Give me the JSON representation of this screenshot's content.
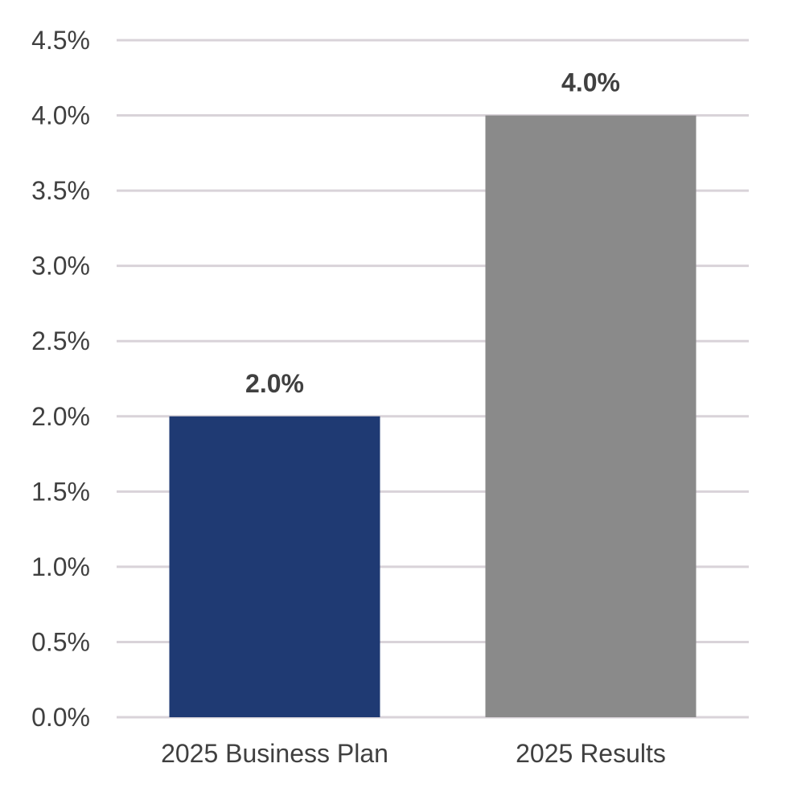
{
  "chart_data": {
    "type": "bar",
    "title": "",
    "xlabel": "",
    "ylabel": "",
    "categories": [
      "2025 Business Plan",
      "2025 Results"
    ],
    "values": [
      2.0,
      4.0
    ],
    "value_labels": [
      "2.0%",
      "4.0%"
    ],
    "colors": [
      "#1f3a73",
      "#8a8a8a"
    ],
    "ylim": [
      0,
      4.5
    ],
    "yticks": [
      0,
      0.5,
      1.0,
      1.5,
      2.0,
      2.5,
      3.0,
      3.5,
      4.0,
      4.5
    ],
    "ytick_labels": [
      "0.0%",
      "0.5%",
      "1.0%",
      "1.5%",
      "2.0%",
      "2.5%",
      "3.0%",
      "3.5%",
      "4.0%",
      "4.5%"
    ],
    "grid": true,
    "gridline_color": "#d9d3d9",
    "legend": "none"
  }
}
